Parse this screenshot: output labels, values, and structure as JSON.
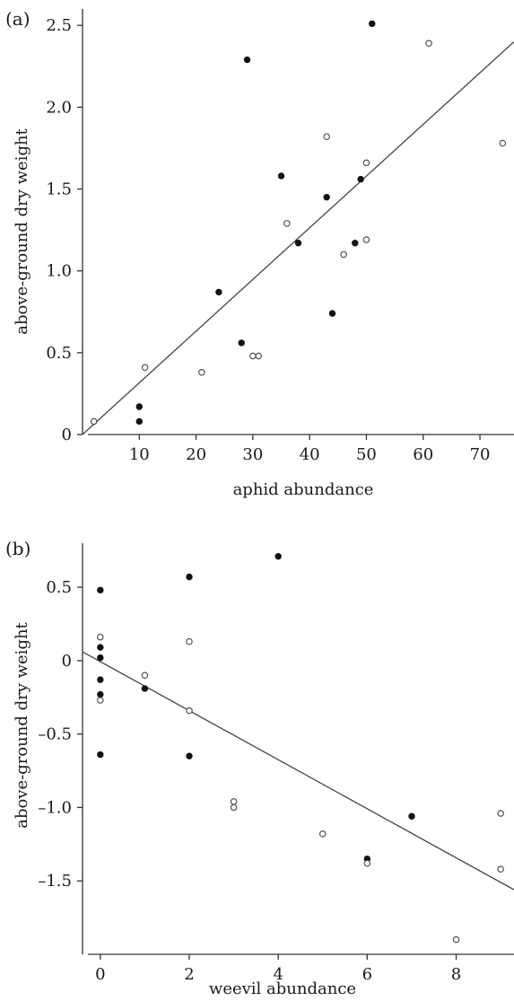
{
  "chart_data": [
    {
      "type": "scatter",
      "panel_label": "(a)",
      "xlabel": "aphid abundance",
      "ylabel": "above-ground dry weight",
      "xlim": [
        0,
        76
      ],
      "ylim": [
        0,
        2.6
      ],
      "xticks": [
        10,
        20,
        30,
        40,
        50,
        60,
        70
      ],
      "yticks": [
        0,
        0.5,
        1.0,
        1.5,
        2.0,
        2.5
      ],
      "ytick_labels": [
        "0",
        "0.5",
        "1.0",
        "1.5",
        "2.0",
        "2.5"
      ],
      "grid": false,
      "legend": "none",
      "series": [
        {
          "marker": "filled",
          "points": [
            [
              10,
              0.17
            ],
            [
              10,
              0.08
            ],
            [
              24,
              0.87
            ],
            [
              28,
              0.56
            ],
            [
              29,
              2.29
            ],
            [
              35,
              1.58
            ],
            [
              38,
              1.17
            ],
            [
              43,
              1.45
            ],
            [
              44,
              0.74
            ],
            [
              48,
              1.17
            ],
            [
              49,
              1.56
            ],
            [
              51,
              2.51
            ]
          ]
        },
        {
          "marker": "open",
          "points": [
            [
              2,
              0.08
            ],
            [
              11,
              0.41
            ],
            [
              21,
              0.38
            ],
            [
              30,
              0.48
            ],
            [
              31,
              0.48
            ],
            [
              36,
              1.29
            ],
            [
              43,
              1.82
            ],
            [
              46,
              1.1
            ],
            [
              50,
              1.66
            ],
            [
              50,
              1.19
            ],
            [
              61,
              2.39
            ],
            [
              74,
              1.78
            ]
          ]
        }
      ],
      "fit_line": [
        [
          0,
          0.0
        ],
        [
          76,
          2.4
        ]
      ]
    },
    {
      "type": "scatter",
      "panel_label": "(b)",
      "xlabel": "weevil abundance",
      "ylabel": "above-ground dry weight",
      "xlim": [
        -0.4,
        9.3
      ],
      "ylim": [
        -2.0,
        0.8
      ],
      "xticks": [
        0,
        2,
        4,
        6,
        8
      ],
      "yticks": [
        0.5,
        0,
        -0.5,
        -1.0,
        -1.5
      ],
      "ytick_labels": [
        "0.5",
        "0",
        "–0.5",
        "–1.0",
        "–1.5"
      ],
      "grid": false,
      "legend": "none",
      "series": [
        {
          "marker": "filled",
          "points": [
            [
              0,
              0.48
            ],
            [
              0,
              0.09
            ],
            [
              0,
              0.02
            ],
            [
              0,
              -0.13
            ],
            [
              0,
              -0.23
            ],
            [
              0,
              -0.64
            ],
            [
              1,
              -0.19
            ],
            [
              2,
              0.57
            ],
            [
              2,
              -0.65
            ],
            [
              4,
              0.71
            ],
            [
              6,
              -1.35
            ],
            [
              7,
              -1.06
            ]
          ]
        },
        {
          "marker": "open",
          "points": [
            [
              0,
              0.16
            ],
            [
              0,
              -0.27
            ],
            [
              1,
              -0.1
            ],
            [
              2,
              0.13
            ],
            [
              2,
              -0.34
            ],
            [
              3,
              -0.96
            ],
            [
              3,
              -1.0
            ],
            [
              5,
              -1.18
            ],
            [
              6,
              -1.38
            ],
            [
              8,
              -1.9
            ],
            [
              9,
              -1.04
            ],
            [
              9,
              -1.42
            ]
          ]
        }
      ],
      "fit_line": [
        [
          -0.4,
          0.06
        ],
        [
          9.3,
          -1.56
        ]
      ]
    }
  ]
}
